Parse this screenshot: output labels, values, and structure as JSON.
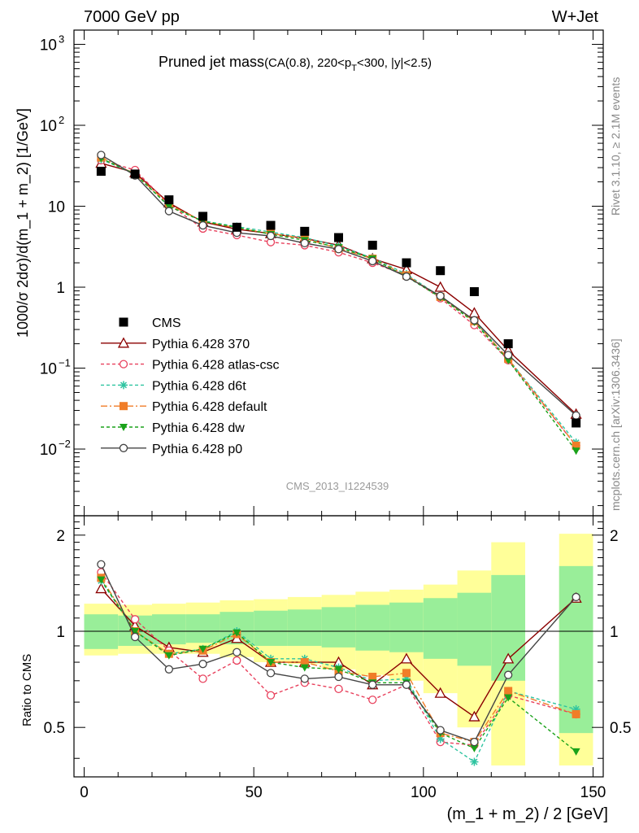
{
  "header": {
    "left": "7000 GeV pp",
    "right": "W+Jet"
  },
  "annotations": {
    "title_main": "Pruned jet mass",
    "title_cuts": "(CA(0.8), 220<p",
    "title_sub": "T",
    "title_tail": "<300, |y|<2.5)",
    "analysis_id": "CMS_2013_I1224539",
    "side_rivet": "Rivet 3.1.10, ≥ 2.1M events",
    "side_mcplots": "mcplots.cern.ch [arXiv:1306.3436]"
  },
  "axes": {
    "ylabel_top": "1000/σ 2dσ)/d(m_1 + m_2) [1/GeV]",
    "ylabel_ratio": "Ratio to CMS",
    "xlabel": "(m_1 + m_2) / 2 [GeV]",
    "top_yticks": [
      {
        "v": 1000,
        "label": "10",
        "sup": "3"
      },
      {
        "v": 100,
        "label": "10",
        "sup": "2"
      },
      {
        "v": 10,
        "label": "10",
        "sup": ""
      },
      {
        "v": 1,
        "label": "1",
        "sup": ""
      },
      {
        "v": 0.1,
        "label": "10",
        "sup": "−1"
      },
      {
        "v": 0.01,
        "label": "10",
        "sup": "−2"
      }
    ],
    "ratio_yticks": [
      {
        "v": 0.5,
        "label": "0.5"
      },
      {
        "v": 1,
        "label": "1"
      },
      {
        "v": 2,
        "label": "2"
      }
    ],
    "xticks": [
      {
        "v": 0,
        "label": "0"
      },
      {
        "v": 50,
        "label": "50"
      },
      {
        "v": 100,
        "label": "100"
      },
      {
        "v": 150,
        "label": "150"
      }
    ]
  },
  "chart_data": {
    "type": "scatter",
    "x": [
      5,
      15,
      25,
      35,
      45,
      55,
      65,
      75,
      85,
      95,
      105,
      115,
      125,
      145
    ],
    "xlim": [
      -3,
      153
    ],
    "ylim": [
      0.0015,
      1500
    ],
    "yscale": "log",
    "ratio_ylim": [
      0.35,
      2.3
    ],
    "ratio_yscale": "log",
    "bins": [
      [
        0,
        10
      ],
      [
        10,
        20
      ],
      [
        20,
        30
      ],
      [
        30,
        40
      ],
      [
        40,
        50
      ],
      [
        50,
        60
      ],
      [
        60,
        70
      ],
      [
        70,
        80
      ],
      [
        80,
        90
      ],
      [
        90,
        100
      ],
      [
        100,
        110
      ],
      [
        110,
        120
      ],
      [
        120,
        130
      ],
      [
        140,
        150
      ]
    ],
    "reference": {
      "name": "CMS",
      "values": [
        27,
        25,
        12,
        7.5,
        5.5,
        5.8,
        4.9,
        4.1,
        3.3,
        2.0,
        1.6,
        0.88,
        0.2,
        0.021
      ],
      "band_inner": [
        [
          0.88,
          1.13
        ],
        [
          0.9,
          1.12
        ],
        [
          0.91,
          1.13
        ],
        [
          0.92,
          1.13
        ],
        [
          0.91,
          1.15
        ],
        [
          0.9,
          1.16
        ],
        [
          0.9,
          1.17
        ],
        [
          0.89,
          1.19
        ],
        [
          0.87,
          1.21
        ],
        [
          0.86,
          1.23
        ],
        [
          0.82,
          1.27
        ],
        [
          0.78,
          1.32
        ],
        [
          0.7,
          1.5
        ],
        [
          0.48,
          1.6
        ]
      ],
      "band_outer": [
        [
          0.84,
          1.22
        ],
        [
          0.85,
          1.21
        ],
        [
          0.85,
          1.22
        ],
        [
          0.85,
          1.23
        ],
        [
          0.83,
          1.25
        ],
        [
          0.8,
          1.26
        ],
        [
          0.79,
          1.28
        ],
        [
          0.76,
          1.3
        ],
        [
          0.73,
          1.33
        ],
        [
          0.7,
          1.35
        ],
        [
          0.64,
          1.4
        ],
        [
          0.5,
          1.55
        ],
        [
          0.38,
          1.9
        ],
        [
          0.38,
          2.02
        ]
      ]
    },
    "series": [
      {
        "name": "Pythia 6.428 370",
        "color": "#8b0000",
        "marker": "open-triangle",
        "dash": "",
        "values": [
          34,
          26,
          11,
          6.4,
          5.2,
          4.6,
          4.0,
          3.3,
          2.25,
          1.65,
          1.0,
          0.48,
          0.165,
          0.027
        ],
        "ratio": [
          1.36,
          1.04,
          0.89,
          0.86,
          0.95,
          0.8,
          0.8,
          0.8,
          0.68,
          0.82,
          0.64,
          0.54,
          0.82,
          1.27
        ]
      },
      {
        "name": "Pythia 6.428 atlas-csc",
        "color": "#e8405c",
        "marker": "open-circle",
        "dash": "4,3",
        "values": [
          37,
          28,
          10.5,
          5.3,
          4.4,
          3.6,
          3.3,
          2.7,
          2.0,
          1.4,
          0.73,
          0.34,
          0.125,
          0.011
        ],
        "ratio": [
          1.53,
          1.09,
          0.87,
          0.71,
          0.81,
          0.63,
          0.69,
          0.66,
          0.61,
          0.68,
          0.45,
          0.44,
          0.63,
          0.55
        ]
      },
      {
        "name": "Pythia 6.428 d6t",
        "color": "#2ec4a0",
        "marker": "star",
        "dash": "4,3",
        "values": [
          38,
          25,
          10,
          6.6,
          5.6,
          4.8,
          4.1,
          3.2,
          2.3,
          1.45,
          0.76,
          0.38,
          0.13,
          0.012
        ],
        "ratio": [
          1.44,
          1.0,
          0.85,
          0.88,
          1.0,
          0.82,
          0.82,
          0.77,
          0.7,
          0.71,
          0.46,
          0.39,
          0.65,
          0.57
        ]
      },
      {
        "name": "Pythia 6.428 default",
        "color": "#f07d28",
        "marker": "filled-square",
        "dash": "8,3,2,3",
        "values": [
          40,
          25,
          10.5,
          6.5,
          5.4,
          4.6,
          4.0,
          3.0,
          2.25,
          1.4,
          0.76,
          0.38,
          0.13,
          0.011
        ],
        "ratio": [
          1.47,
          1.0,
          0.85,
          0.87,
          0.98,
          0.8,
          0.8,
          0.75,
          0.72,
          0.74,
          0.48,
          0.45,
          0.65,
          0.55
        ]
      },
      {
        "name": "Pythia 6.428 dw",
        "color": "#1aa21a",
        "marker": "filled-triangle-down",
        "dash": "4,3",
        "values": [
          39,
          25,
          10,
          6.5,
          5.5,
          4.5,
          3.8,
          3.1,
          2.25,
          1.35,
          0.75,
          0.37,
          0.125,
          0.0095
        ],
        "ratio": [
          1.45,
          1.0,
          0.84,
          0.88,
          0.99,
          0.8,
          0.77,
          0.76,
          0.69,
          0.69,
          0.48,
          0.43,
          0.62,
          0.42
        ]
      },
      {
        "name": "Pythia 6.428 p0",
        "color": "#444444",
        "marker": "open-circle",
        "dash": "",
        "values": [
          43,
          24,
          8.7,
          5.8,
          4.7,
          4.3,
          3.5,
          2.95,
          2.1,
          1.35,
          0.78,
          0.39,
          0.145,
          0.026
        ],
        "ratio": [
          1.62,
          0.96,
          0.76,
          0.79,
          0.86,
          0.74,
          0.71,
          0.72,
          0.68,
          0.68,
          0.49,
          0.45,
          0.73,
          1.28
        ]
      }
    ]
  }
}
